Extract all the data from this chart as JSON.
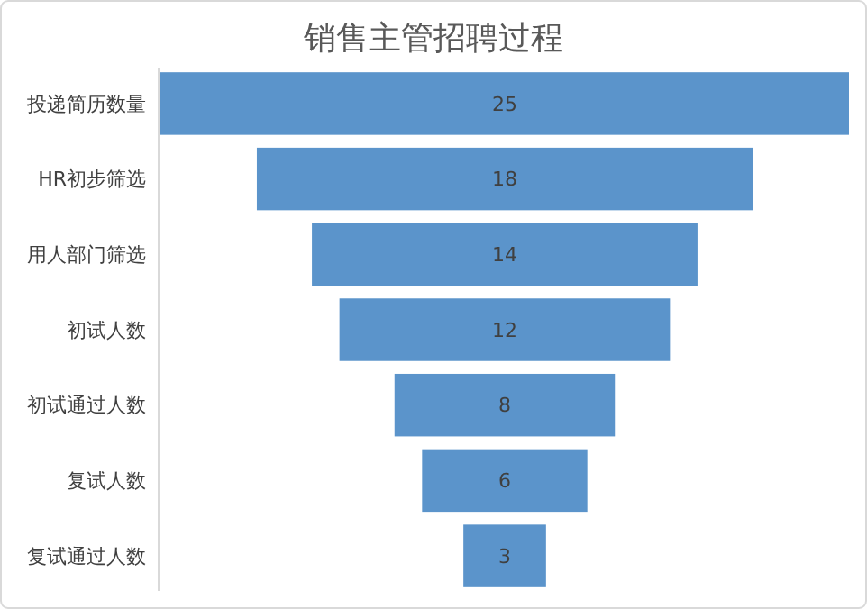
{
  "chart_data": {
    "type": "other",
    "title": "销售主管招聘过程",
    "categories": [
      "投递简历数量",
      "HR初步筛选",
      "用人部门筛选",
      "初试人数",
      "初试通过人数",
      "复试人数",
      "复试通过人数"
    ],
    "values": [
      25,
      18,
      14,
      12,
      8,
      6,
      3
    ],
    "color": "#5b94cb",
    "data_labels": true
  }
}
